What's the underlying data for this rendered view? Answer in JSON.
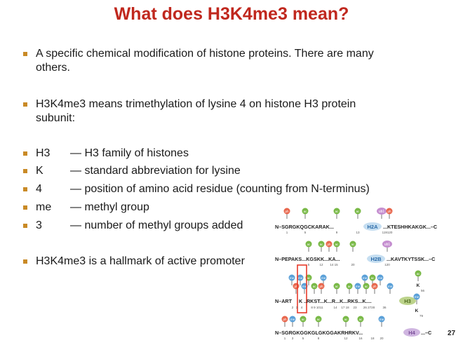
{
  "title": "What does H3K4me3 mean?",
  "bullets": {
    "b1_line1": "A specific chemical modification of histone proteins. There are many",
    "b1_line2": "others.",
    "b2_line1": "H3K4me3 means trimethylation of lysine 4 on histone H3 protein",
    "b2_line2": "subunit:",
    "b7": "H3K4me3 is a hallmark of active promoter"
  },
  "definitions": [
    {
      "term": "H3",
      "definition": "— H3 family of histones"
    },
    {
      "term": "K",
      "definition": "— standard abbreviation for lysine"
    },
    {
      "term": "4",
      "definition": "— position of amino acid residue (counting from N-terminus)"
    },
    {
      "term": "me",
      "definition": "— methyl group"
    },
    {
      "term": "3",
      "definition": "— number of methyl groups added"
    }
  ],
  "diagram": {
    "mod_labels": {
      "ph": "ph",
      "ac": "ac",
      "ub1": "ub1",
      "me": "me"
    },
    "h2a": {
      "seq_pre": "N–SGRGKQGCKARAK...",
      "seq_post": "...KTESHHKAKGK...–C",
      "label": "H2A",
      "nums": [
        "1",
        "5",
        "9",
        "13",
        "119120"
      ]
    },
    "h2b": {
      "seq_pre": "N–PEPAKS...KGSKK...KA...",
      "seq_post": "...KAVTKYTSSK...–C",
      "label": "H2B",
      "nums": [
        "5",
        "12",
        "14 15",
        "20",
        "120"
      ]
    },
    "h3": {
      "seq_pre": "N–ART",
      "seq_k4": "K",
      "seq_post": "..RKST...K...R...K...RKS...K....",
      "label": "H3",
      "side_residue": "K",
      "nums_a": [
        "2",
        "3"
      ],
      "num_k4": "4",
      "nums_b": [
        "8 9 1011",
        "14",
        "17 18",
        "23",
        "26 2728",
        "36"
      ],
      "side_nums": [
        "56",
        "79"
      ]
    },
    "h4": {
      "seq_pre": "N–SGRGKGGKGLGKGGAKRHRKV...",
      "seq_post": "...–C",
      "label": "H4",
      "nums": [
        "1",
        "3",
        "5",
        "8",
        "12",
        "16",
        "18",
        "20"
      ]
    }
  },
  "page_number": "27",
  "colors": {
    "title": "#c0281e",
    "bullet": "#c98a26",
    "ph": "#e8674d",
    "ac": "#79b947",
    "ub1": "#c58fd0",
    "me": "#5aa0d8",
    "h2a": "#5aa0d8",
    "h2b": "#5aa0d8",
    "h3": "#bcd38b",
    "h4": "#cfb5e0",
    "highlight": "#e83a2a"
  }
}
